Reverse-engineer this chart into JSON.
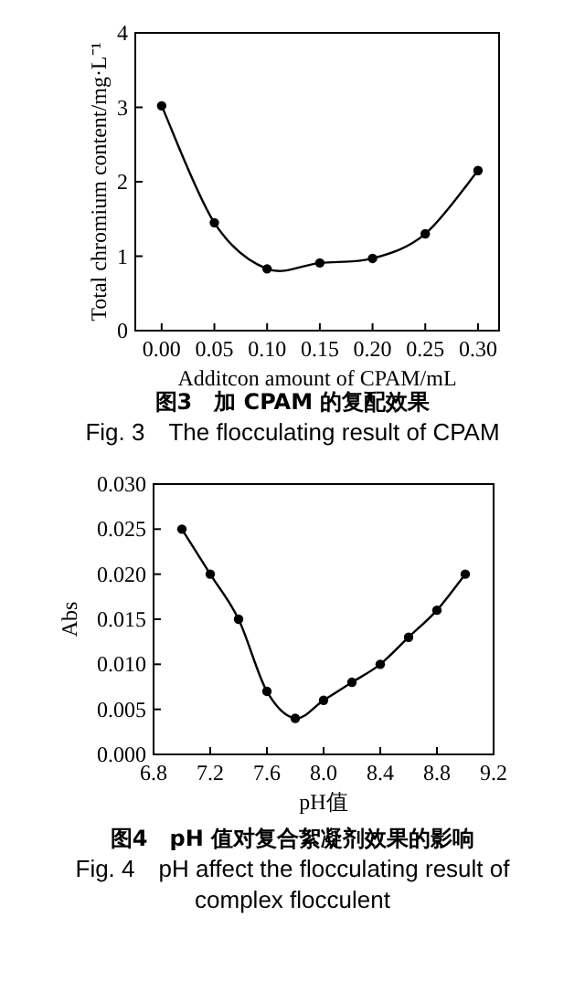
{
  "chart_data": [
    {
      "type": "line",
      "title": "图3　加 CPAM 的复配效果",
      "subtitle": "Fig. 3　The flocculating result of CPAM",
      "xlabel": "Additcon amount of CPAM/mL",
      "ylabel": "Total chromium content/mg·L⁻¹",
      "x": [
        0.0,
        0.05,
        0.1,
        0.15,
        0.2,
        0.25,
        0.3
      ],
      "values": [
        3.02,
        1.45,
        0.83,
        0.91,
        0.97,
        1.3,
        2.15
      ],
      "color": "#000000",
      "marker": "circle",
      "line_style": "solid",
      "xlim": [
        -0.025,
        0.32
      ],
      "ylim": [
        0,
        4
      ],
      "xticks": [
        {
          "value": 0,
          "label": "0.00"
        },
        {
          "value": 0.05,
          "label": "0.05"
        },
        {
          "value": 0.1,
          "label": "0.10"
        },
        {
          "value": 0.15,
          "label": "0.15"
        },
        {
          "value": 0.2,
          "label": "0.20"
        },
        {
          "value": 0.25,
          "label": "0.25"
        },
        {
          "value": 0.3,
          "label": "0.30"
        }
      ],
      "yticks": [
        0,
        1,
        2,
        3,
        4
      ]
    },
    {
      "type": "line",
      "title": "图4　pH 值对复合絮凝剂效果的影响",
      "subtitle": "Fig. 4　pH affect the flocculating result of complex flocculent",
      "xlabel": "pH值",
      "ylabel": "Abs",
      "x": [
        7.0,
        7.2,
        7.4,
        7.6,
        7.8,
        8.0,
        8.2,
        8.4,
        8.6,
        8.8,
        9.0
      ],
      "values": [
        0.025,
        0.02,
        0.015,
        0.007,
        0.004,
        0.006,
        0.008,
        0.01,
        0.013,
        0.016,
        0.02
      ],
      "color": "#000000",
      "marker": "circle",
      "line_style": "solid",
      "xlim": [
        6.8,
        9.2
      ],
      "ylim": [
        0,
        0.03
      ],
      "xticks": [
        {
          "value": 6.8,
          "label": "6.8"
        },
        {
          "value": 7.2,
          "label": "7.2"
        },
        {
          "value": 7.6,
          "label": "7.6"
        },
        {
          "value": 8.0,
          "label": "8.0"
        },
        {
          "value": 8.4,
          "label": "8.4"
        },
        {
          "value": 8.8,
          "label": "8.8"
        },
        {
          "value": 9.2,
          "label": "9.2"
        }
      ],
      "yticks": [
        {
          "value": 0,
          "label": "0.000"
        },
        {
          "value": 0.005,
          "label": "0.005"
        },
        {
          "value": 0.01,
          "label": "0.010"
        },
        {
          "value": 0.015,
          "label": "0.015"
        },
        {
          "value": 0.02,
          "label": "0.020"
        },
        {
          "value": 0.025,
          "label": "0.025"
        },
        {
          "value": 0.03,
          "label": "0.030"
        }
      ]
    }
  ]
}
